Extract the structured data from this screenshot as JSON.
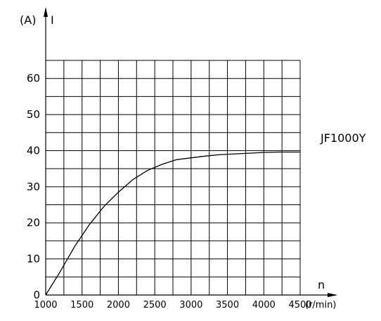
{
  "chart_data": {
    "type": "line",
    "y_unit": "(A)",
    "ylabel": "I",
    "xlabel": "n",
    "x_unit": "(r/min)",
    "annotation": "JF1000Y",
    "xlim": [
      1000,
      4500
    ],
    "ylim": [
      0,
      65
    ],
    "grid": true,
    "x_ticks": [
      1000,
      1500,
      2000,
      2500,
      3000,
      3500,
      4000,
      4500
    ],
    "x_tick_labels": [
      "1000",
      "1500",
      "2000",
      "2500",
      "3000",
      "3500",
      "4000",
      "4500"
    ],
    "y_ticks": [
      0,
      10,
      20,
      30,
      40,
      50,
      60
    ],
    "y_tick_labels": [
      "0",
      "10",
      "20",
      "30",
      "40",
      "50",
      "60"
    ],
    "series": [
      {
        "x": [
          1000,
          1200,
          1400,
          1600,
          1800,
          2000,
          2200,
          2400,
          2600,
          2800,
          3000,
          3200,
          3400,
          3600,
          3800,
          4000,
          4200,
          4500
        ],
        "y": [
          0,
          6.5,
          13.5,
          19.5,
          24.5,
          28.5,
          32,
          34.5,
          36.2,
          37.5,
          38,
          38.5,
          38.9,
          39.1,
          39.3,
          39.5,
          39.6,
          39.6
        ]
      }
    ]
  }
}
